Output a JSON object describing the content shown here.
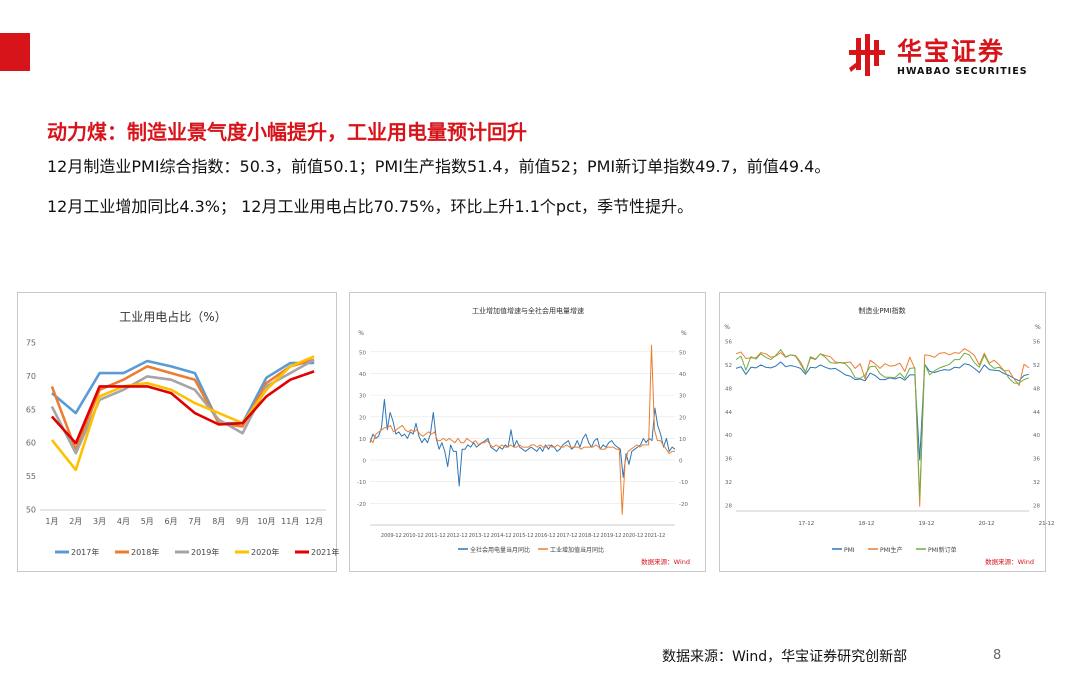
{
  "header": {
    "logo_cn": "华宝证券",
    "logo_en": "HWABAO SECURITIES",
    "colors": {
      "brand_red": "#d7141a"
    }
  },
  "headline": "动力煤：制造业景气度小幅提升，工业用电量预计回升",
  "lines": [
    "12月制造业PMI综合指数：50.3，前值50.1；PMI生产指数51.4，前值52；PMI新订单指数49.7，前值49.4。",
    "12月工业增加同比4.3%；  12月工业用电占比70.75%，环比上升1.1个pct，季节性提升。"
  ],
  "footer": {
    "source": "数据来源：Wind，华宝证券研究创新部",
    "page": "8"
  },
  "chart_data": [
    {
      "type": "line",
      "title": "工业用电占比（%）",
      "categories": [
        "1月",
        "2月",
        "3月",
        "4月",
        "5月",
        "6月",
        "7月",
        "8月",
        "9月",
        "10月",
        "11月",
        "12月"
      ],
      "ylim": [
        50,
        75
      ],
      "yticks": [
        50,
        55,
        60,
        65,
        70,
        75
      ],
      "legend_position": "bottom",
      "series": [
        {
          "name": "2017年",
          "color": "#5b9bd5",
          "values": [
            67.5,
            64.5,
            70.5,
            70.5,
            72.3,
            71.5,
            70.5,
            63.0,
            63.0,
            69.8,
            72.0,
            72.0
          ]
        },
        {
          "name": "2018年",
          "color": "#ed7d31",
          "values": [
            68.5,
            59.0,
            68.0,
            69.5,
            71.5,
            70.5,
            69.5,
            63.0,
            62.5,
            69.0,
            71.5,
            72.5
          ]
        },
        {
          "name": "2019年",
          "color": "#a5a5a5",
          "values": [
            65.5,
            58.5,
            66.5,
            68.0,
            70.0,
            69.5,
            68.0,
            63.5,
            61.5,
            68.5,
            70.5,
            72.5
          ]
        },
        {
          "name": "2020年",
          "color": "#ffc000",
          "values": [
            60.5,
            56.0,
            67.0,
            68.5,
            69.0,
            68.0,
            66.0,
            64.5,
            63.0,
            68.0,
            71.5,
            73.0
          ]
        },
        {
          "name": "2021年",
          "color": "#e00000",
          "values": [
            64.0,
            60.0,
            68.5,
            68.5,
            68.5,
            67.5,
            64.5,
            62.8,
            63.0,
            67.0,
            69.5,
            70.75
          ]
        }
      ]
    },
    {
      "type": "line",
      "title": "工业增加值增速与全社会用电量增速",
      "x_ticks": [
        "2009-12",
        "2010-12",
        "2011-12",
        "2012-12",
        "2013-12",
        "2014-12",
        "2015-12",
        "2016-12",
        "2017-12",
        "2018-12",
        "2019-12",
        "2020-12",
        "2021-12"
      ],
      "ylim": [
        -30,
        55
      ],
      "yticks": [
        -20,
        -10,
        0,
        10,
        20,
        30,
        40,
        50
      ],
      "unit_left": "%",
      "unit_right": "%",
      "legend_position": "bottom",
      "source_note": "数据来源：Wind",
      "series": [
        {
          "name": "全社会用电量当月同比",
          "color": "#2e75b6",
          "values": [
            8,
            12,
            10,
            11,
            15,
            28,
            14,
            22,
            18,
            12,
            13,
            11,
            12,
            10,
            13,
            12,
            17,
            11,
            8,
            10,
            8,
            12,
            22,
            10,
            5,
            8,
            4,
            -3,
            7,
            4,
            4,
            -12,
            5,
            5,
            7,
            6,
            8,
            6,
            7,
            8,
            9,
            10,
            6,
            5,
            4,
            6,
            5,
            7,
            6,
            14,
            6,
            9,
            6,
            5,
            4,
            5,
            6,
            5,
            4,
            6,
            4,
            7,
            5,
            7,
            6,
            4,
            5,
            7,
            8,
            9,
            5,
            6,
            9,
            6,
            10,
            12,
            8,
            6,
            9,
            10,
            5,
            7,
            6,
            8,
            9,
            7,
            6,
            5,
            -8,
            3,
            -2,
            4,
            5,
            6,
            7,
            10,
            8,
            10,
            9,
            24,
            16,
            12,
            6,
            10,
            4,
            6,
            5
          ]
        },
        {
          "name": "工业增加值当月同比",
          "color": "#ed7d31",
          "values": [
            10,
            8,
            12,
            13,
            14,
            15,
            15,
            16,
            13,
            14,
            15,
            16,
            14,
            13,
            14,
            13,
            14,
            12,
            11,
            12,
            13,
            12,
            13,
            9,
            9,
            10,
            9,
            10,
            9,
            8,
            10,
            8,
            8,
            10,
            9,
            8,
            9,
            7,
            8,
            8,
            9,
            7,
            6,
            7,
            6,
            7,
            6,
            6,
            7,
            6,
            6,
            7,
            6,
            6,
            6,
            7,
            7,
            6,
            7,
            6,
            6,
            7,
            6,
            6,
            7,
            6,
            6,
            7,
            6,
            6,
            6,
            6,
            5,
            6,
            6,
            6,
            6,
            7,
            6,
            5,
            5,
            6,
            6,
            6,
            5,
            5,
            -25,
            -1,
            4,
            5,
            6,
            7,
            6,
            7,
            7,
            7,
            53,
            14,
            9,
            9,
            7,
            5,
            3,
            4,
            4
          ]
        }
      ]
    },
    {
      "type": "line",
      "title": "制造业PMI指数",
      "x_ticks": [
        "17-12",
        "18-12",
        "19-12",
        "20-12",
        "21-12"
      ],
      "ylim": [
        27,
        57
      ],
      "yticks": [
        28,
        32,
        36,
        40,
        44,
        48,
        52,
        56
      ],
      "unit_left": "%",
      "unit_right": "%",
      "legend_position": "bottom",
      "source_note": "数据来源：Wind",
      "series": [
        {
          "name": "PMI",
          "color": "#2e75b6",
          "values": [
            51.3,
            51.6,
            50.3,
            51.5,
            51.4,
            51.9,
            51.5,
            51.4,
            51.7,
            52.4,
            51.6,
            51.8,
            51.6,
            51.3,
            50.3,
            51.5,
            51.4,
            51.9,
            51.5,
            51.2,
            51.3,
            50.8,
            50.2,
            50.0,
            49.4,
            49.5,
            49.2,
            50.5,
            50.1,
            49.4,
            49.4,
            49.7,
            49.5,
            49.8,
            49.3,
            50.2,
            50.2,
            35.7,
            52.0,
            50.8,
            50.6,
            50.9,
            51.1,
            51.0,
            51.5,
            51.4,
            52.1,
            51.9,
            51.3,
            50.6,
            51.9,
            51.1,
            51.0,
            50.9,
            50.4,
            50.1,
            49.6,
            49.2,
            50.1,
            50.3
          ]
        },
        {
          "name": "PMI生产",
          "color": "#ed7d31",
          "values": [
            53.8,
            54.1,
            53.0,
            53.1,
            53.1,
            54.0,
            53.8,
            53.2,
            53.4,
            54.0,
            53.2,
            53.6,
            53.5,
            52.4,
            50.7,
            53.1,
            52.8,
            53.8,
            53.5,
            53.3,
            52.4,
            52.3,
            52.3,
            52.4,
            51.3,
            52.1,
            49.5,
            52.7,
            52.1,
            51.3,
            52.1,
            51.7,
            51.8,
            52.2,
            50.8,
            53.2,
            51.3,
            27.8,
            53.6,
            53.5,
            53.2,
            53.9,
            54.0,
            53.6,
            54.0,
            53.9,
            54.7,
            54.2,
            53.5,
            51.9,
            53.9,
            52.2,
            52.7,
            51.9,
            50.9,
            50.9,
            49.5,
            48.4,
            52.0,
            51.4
          ]
        },
        {
          "name": "PMI新订单",
          "color": "#70ad47",
          "values": [
            52.8,
            53.4,
            51.0,
            53.3,
            52.9,
            53.8,
            53.2,
            52.8,
            53.5,
            54.5,
            53.3,
            53.6,
            53.4,
            52.0,
            50.6,
            53.3,
            52.9,
            53.8,
            53.2,
            52.3,
            52.2,
            52.3,
            52.1,
            51.2,
            49.7,
            49.6,
            50.2,
            51.6,
            51.7,
            50.4,
            49.8,
            49.8,
            49.7,
            50.5,
            49.6,
            51.3,
            51.4,
            29.3,
            52.0,
            50.2,
            50.9,
            51.4,
            51.7,
            52.0,
            52.8,
            52.8,
            53.9,
            53.6,
            52.3,
            51.5,
            53.6,
            52.0,
            51.3,
            51.5,
            50.9,
            49.6,
            48.8,
            48.8,
            49.4,
            49.7
          ]
        }
      ]
    }
  ]
}
